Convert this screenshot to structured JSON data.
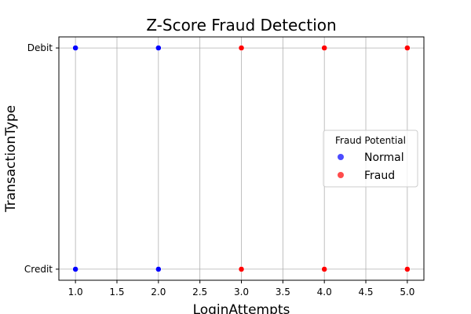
{
  "chart_data": {
    "type": "scatter",
    "title": "Z-Score Fraud Detection",
    "xlabel": "LoginAttempts",
    "ylabel": "TransactionType",
    "xlim": [
      0.8,
      5.2
    ],
    "xticks": [
      "1.0",
      "1.5",
      "2.0",
      "2.5",
      "3.0",
      "3.5",
      "4.0",
      "4.5",
      "5.0"
    ],
    "ycategories": [
      "Credit",
      "Debit"
    ],
    "grid": true,
    "legend": {
      "title": "Fraud Potential",
      "placement": "center-right",
      "entries": [
        {
          "label": "Normal",
          "color": "#0000ff"
        },
        {
          "label": "Fraud",
          "color": "#ff0000"
        }
      ]
    },
    "series": [
      {
        "name": "Normal",
        "color": "#0000ff",
        "points": [
          {
            "x": 1,
            "y": "Debit"
          },
          {
            "x": 2,
            "y": "Debit"
          },
          {
            "x": 1,
            "y": "Credit"
          },
          {
            "x": 2,
            "y": "Credit"
          }
        ]
      },
      {
        "name": "Fraud",
        "color": "#ff0000",
        "points": [
          {
            "x": 3,
            "y": "Debit"
          },
          {
            "x": 4,
            "y": "Debit"
          },
          {
            "x": 5,
            "y": "Debit"
          },
          {
            "x": 3,
            "y": "Credit"
          },
          {
            "x": 4,
            "y": "Credit"
          },
          {
            "x": 5,
            "y": "Credit"
          }
        ]
      }
    ]
  }
}
